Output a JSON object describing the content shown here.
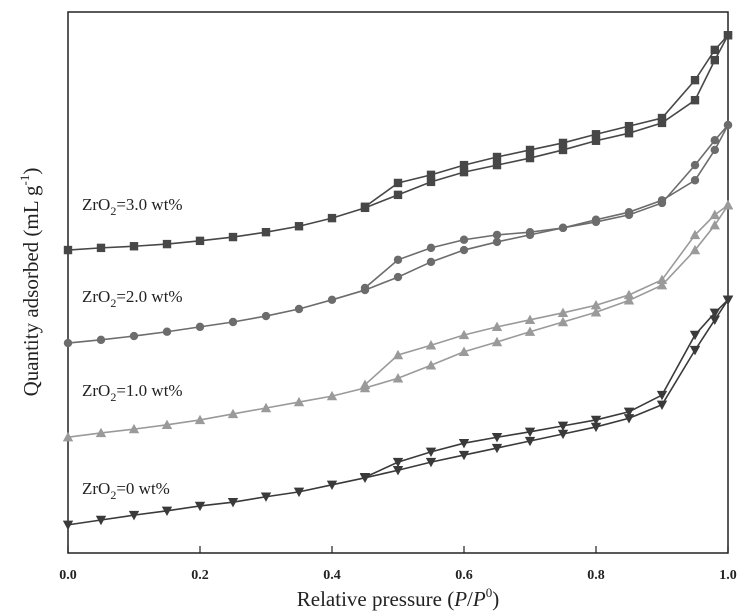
{
  "chart_data": {
    "type": "line",
    "x_label_parts": [
      "Relative pressure (",
      "P",
      "/",
      "P",
      "0",
      ")"
    ],
    "y_label_parts": [
      "Quantity adsorbed (mL g",
      "-1",
      ")"
    ],
    "x": [
      0,
      0.05,
      0.1,
      0.15,
      0.2,
      0.25,
      0.3,
      0.35,
      0.4,
      0.45,
      0.5,
      0.55,
      0.6,
      0.65,
      0.7,
      0.75,
      0.8,
      0.85,
      0.9,
      0.95,
      0.98,
      1.0
    ],
    "xlim": [
      0,
      1
    ],
    "ylim": [
      0,
      100
    ],
    "xticks": [
      {
        "value": 0,
        "label": "0.0"
      },
      0.2,
      0.4,
      0.6,
      0.8,
      {
        "value": 1,
        "label": "1.0"
      }
    ],
    "series": [
      {
        "name": [
          "ZrO",
          "2",
          "=3.0 wt%"
        ],
        "color": "#474747",
        "marker": "square",
        "values": [
          56.0,
          56.4,
          56.7,
          57.1,
          57.7,
          58.4,
          59.3,
          60.4,
          61.9,
          63.8,
          66.2,
          68.6,
          70.4,
          71.7,
          73.0,
          74.5,
          76.2,
          77.6,
          79.5,
          83.7,
          91.1,
          95.7
        ],
        "desorption": [
          null,
          null,
          null,
          null,
          null,
          null,
          null,
          null,
          null,
          64.0,
          68.4,
          69.9,
          71.7,
          73.2,
          74.5,
          75.8,
          77.4,
          78.9,
          80.4,
          87.4,
          93.0,
          95.7
        ]
      },
      {
        "name": [
          "ZrO",
          "2",
          "=2.0 wt%"
        ],
        "color": "#6c6c6c",
        "marker": "circle",
        "values": [
          38.8,
          39.4,
          40.1,
          40.9,
          41.8,
          42.7,
          43.8,
          45.1,
          46.8,
          48.6,
          51.0,
          53.8,
          56.0,
          57.5,
          58.8,
          60.1,
          61.6,
          63.0,
          65.2,
          68.9,
          74.5,
          79.1
        ],
        "desorption": [
          null,
          null,
          null,
          null,
          null,
          null,
          null,
          null,
          null,
          49.0,
          54.2,
          56.4,
          57.9,
          58.8,
          59.3,
          60.1,
          61.2,
          62.5,
          64.7,
          71.7,
          76.3,
          79.1
        ]
      },
      {
        "name": [
          "ZrO",
          "2",
          "=1.0 wt%"
        ],
        "color": "#9a9a9a",
        "marker": "triangle-up",
        "values": [
          21.4,
          22.2,
          22.9,
          23.7,
          24.6,
          25.7,
          26.8,
          27.9,
          29.0,
          30.5,
          32.3,
          34.7,
          37.2,
          39.0,
          40.9,
          42.7,
          44.5,
          46.7,
          49.5,
          56.0,
          60.6,
          64.3
        ],
        "desorption": [
          null,
          null,
          null,
          null,
          null,
          null,
          null,
          null,
          null,
          31.1,
          36.6,
          38.4,
          40.3,
          41.8,
          43.1,
          44.4,
          45.8,
          47.7,
          50.5,
          58.8,
          62.5,
          64.3
        ]
      },
      {
        "name": [
          "ZrO",
          "2",
          "=0 wt%"
        ],
        "color": "#3a3a3a",
        "marker": "triangle-down",
        "values": [
          5.2,
          6.1,
          7.0,
          7.8,
          8.7,
          9.4,
          10.4,
          11.3,
          12.6,
          13.9,
          15.3,
          16.8,
          18.1,
          19.4,
          20.7,
          22.0,
          23.3,
          24.9,
          27.4,
          37.5,
          43.1,
          46.8
        ],
        "desorption": [
          null,
          null,
          null,
          null,
          null,
          null,
          null,
          null,
          null,
          14.0,
          16.8,
          18.7,
          20.3,
          21.4,
          22.4,
          23.5,
          24.6,
          26.1,
          29.2,
          40.3,
          44.4,
          46.8
        ]
      }
    ]
  }
}
